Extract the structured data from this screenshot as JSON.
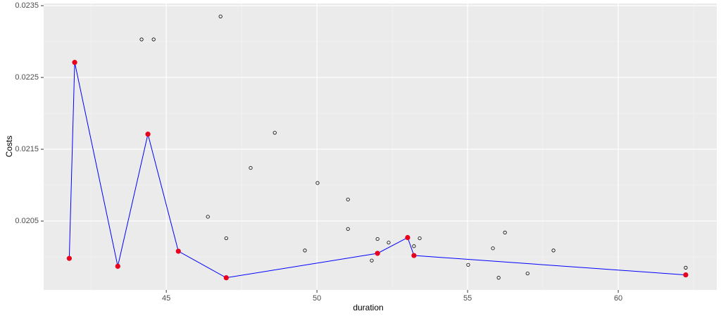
{
  "chart_data": {
    "type": "scatter",
    "x_label": "duration",
    "y_label": "Costs",
    "xlim": [
      40.93,
      63.27
    ],
    "ylim": [
      0.01954,
      0.02353
    ],
    "xticks": [
      45,
      50,
      55,
      60
    ],
    "yticks": [
      0.0205,
      0.0215,
      0.0225,
      0.0235
    ],
    "grid": true,
    "minor_grid": true,
    "points": {
      "color": "#000000",
      "x": [
        44.18,
        44.58,
        46.8,
        48.6,
        47.8,
        50.02,
        51.03,
        46.38,
        51.03,
        46.99,
        52.01,
        53.41,
        52.38,
        53.22,
        49.6,
        51.82,
        56.24,
        55.84,
        57.85,
        55.02,
        56.99,
        56.03,
        62.24
      ],
      "y": [
        0.02303,
        0.02303,
        0.02335,
        0.02173,
        0.02124,
        0.02103,
        0.0208,
        0.02056,
        0.02039,
        0.02026,
        0.02025,
        0.02026,
        0.0202,
        0.02015,
        0.02009,
        0.01995,
        0.02034,
        0.02012,
        0.02009,
        0.01989,
        0.01977,
        0.01971,
        0.01985
      ]
    },
    "frontier": {
      "line_color": "#0000ff",
      "point_color": "#e8001c",
      "x": [
        41.78,
        41.96,
        43.39,
        44.39,
        45.4,
        46.99,
        52.01,
        53.01,
        53.22,
        62.24
      ],
      "y": [
        0.01998,
        0.02271,
        0.01987,
        0.02171,
        0.02008,
        0.01971,
        0.02005,
        0.02027,
        0.02002,
        0.01975
      ]
    }
  }
}
